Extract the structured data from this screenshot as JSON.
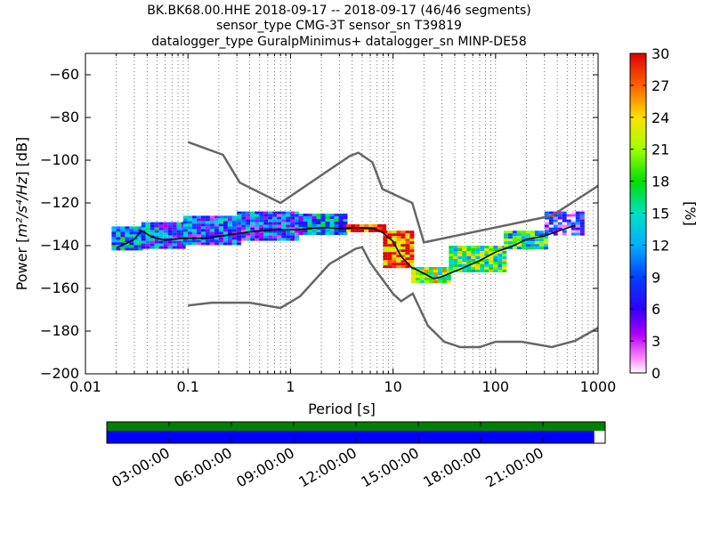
{
  "chart_data": {
    "type": "heatmap",
    "title_lines": [
      "BK.BK68.00.HHE   2018-09-17 -- 2018-09-17  (46/46 segments)",
      "sensor_type CMG-3T sensor_sn T39819",
      "datalogger_type GuralpMinimus+ datalogger_sn MINP-DE58"
    ],
    "xlabel": "Period [s]",
    "ylabel_prefix": "Power [",
    "ylabel_units": "m²/s⁴/Hz",
    "ylabel_suffix": "] [dB]",
    "xscale": "log",
    "xlim": [
      0.01,
      1000
    ],
    "ylim": [
      -200,
      -50
    ],
    "x_ticks": [
      0.01,
      0.1,
      1,
      10,
      100,
      1000
    ],
    "x_tick_labels": [
      "0.01",
      "0.1",
      "1",
      "10",
      "100",
      "1000"
    ],
    "y_ticks": [
      -200,
      -180,
      -160,
      -140,
      -120,
      -100,
      -80,
      -60
    ],
    "y_tick_labels": [
      "−200",
      "−180",
      "−160",
      "−140",
      "−120",
      "−100",
      "−80",
      "−60"
    ],
    "grid": "dotted vertical minor grid",
    "colorbar": {
      "label": "[%]",
      "range": [
        0,
        30
      ],
      "ticks": [
        0,
        3,
        6,
        9,
        12,
        15,
        18,
        21,
        24,
        27,
        30
      ],
      "tick_labels": [
        "0",
        "3",
        "6",
        "9",
        "12",
        "15",
        "18",
        "21",
        "24",
        "27",
        "30"
      ]
    },
    "noise_models": [
      {
        "name": "upper",
        "color": "#666666",
        "points": [
          [
            0.1,
            -91.5
          ],
          [
            0.22,
            -97.5
          ],
          [
            0.32,
            -110.5
          ],
          [
            0.8,
            -120
          ],
          [
            3.8,
            -98
          ],
          [
            4.6,
            -96.5
          ],
          [
            6.3,
            -101
          ],
          [
            7.9,
            -113.5
          ],
          [
            15.4,
            -120
          ],
          [
            20,
            -138.5
          ],
          [
            354,
            -126
          ],
          [
            1000,
            -112
          ]
        ]
      },
      {
        "name": "lower",
        "color": "#666666",
        "points": [
          [
            0.1,
            -168
          ],
          [
            0.17,
            -166.7
          ],
          [
            0.4,
            -166.7
          ],
          [
            0.8,
            -169.2
          ],
          [
            1.24,
            -163.7
          ],
          [
            2.4,
            -148.6
          ],
          [
            4.3,
            -141.5
          ],
          [
            5,
            -140.7
          ],
          [
            6,
            -148
          ],
          [
            10,
            -162.5
          ],
          [
            12,
            -166
          ],
          [
            15.6,
            -162.4
          ],
          [
            21.9,
            -177.5
          ],
          [
            31.6,
            -185
          ],
          [
            45,
            -187.5
          ],
          [
            70,
            -187.5
          ],
          [
            100,
            -185
          ],
          [
            180,
            -185
          ],
          [
            354,
            -187.5
          ],
          [
            600,
            -184.5
          ],
          [
            1000,
            -178.5
          ]
        ]
      }
    ],
    "median_curve": {
      "color": "#000000",
      "points": [
        [
          0.02,
          -141
        ],
        [
          0.025,
          -139
        ],
        [
          0.03,
          -137
        ],
        [
          0.035,
          -133
        ],
        [
          0.045,
          -136
        ],
        [
          0.06,
          -137.5
        ],
        [
          0.09,
          -136.5
        ],
        [
          0.15,
          -136.5
        ],
        [
          0.25,
          -135
        ],
        [
          0.4,
          -133.5
        ],
        [
          0.7,
          -132.5
        ],
        [
          1.2,
          -132.5
        ],
        [
          2,
          -131.5
        ],
        [
          3,
          -132
        ],
        [
          4.5,
          -131.5
        ],
        [
          6.5,
          -132
        ],
        [
          8,
          -134
        ],
        [
          10,
          -138
        ],
        [
          12,
          -145
        ],
        [
          15,
          -150
        ],
        [
          20,
          -153
        ],
        [
          25,
          -155.5
        ],
        [
          30,
          -154.5
        ],
        [
          45,
          -151
        ],
        [
          70,
          -147
        ],
        [
          100,
          -143
        ],
        [
          150,
          -140
        ],
        [
          200,
          -137
        ],
        [
          300,
          -135.5
        ],
        [
          450,
          -132.5
        ],
        [
          600,
          -130.5
        ]
      ]
    },
    "psd_density_bands": [
      {
        "x": [
          0.018,
          0.035
        ],
        "y": [
          -142,
          -131
        ],
        "percent": 12
      },
      {
        "x": [
          0.035,
          0.09
        ],
        "y": [
          -141,
          -129
        ],
        "percent": 10
      },
      {
        "x": [
          0.09,
          0.3
        ],
        "y": [
          -139,
          -126
        ],
        "percent": 9
      },
      {
        "x": [
          0.3,
          1.2
        ],
        "y": [
          -137,
          -124
        ],
        "percent": 9
      },
      {
        "x": [
          1.2,
          3.5
        ],
        "y": [
          -135,
          -125
        ],
        "percent": 11
      },
      {
        "x": [
          3.5,
          8
        ],
        "y": [
          -133,
          -130
        ],
        "percent": 30
      },
      {
        "x": [
          8,
          15
        ],
        "y": [
          -150,
          -133
        ],
        "percent": 28
      },
      {
        "x": [
          15,
          35
        ],
        "y": [
          -157,
          -150
        ],
        "percent": 20
      },
      {
        "x": [
          35,
          120
        ],
        "y": [
          -152,
          -140
        ],
        "percent": 18
      },
      {
        "x": [
          120,
          300
        ],
        "y": [
          -141,
          -133
        ],
        "percent": 16
      },
      {
        "x": [
          300,
          700
        ],
        "y": [
          -135,
          -124
        ],
        "percent": 5
      }
    ],
    "time_axis": {
      "tick_labels": [
        "03:00:00",
        "06:00:00",
        "09:00:00",
        "12:00:00",
        "15:00:00",
        "18:00:00",
        "21:00:00"
      ],
      "coverage_color": "#0000ff",
      "top_bar_color": "#008000",
      "coverage_fraction": 0.978
    }
  }
}
